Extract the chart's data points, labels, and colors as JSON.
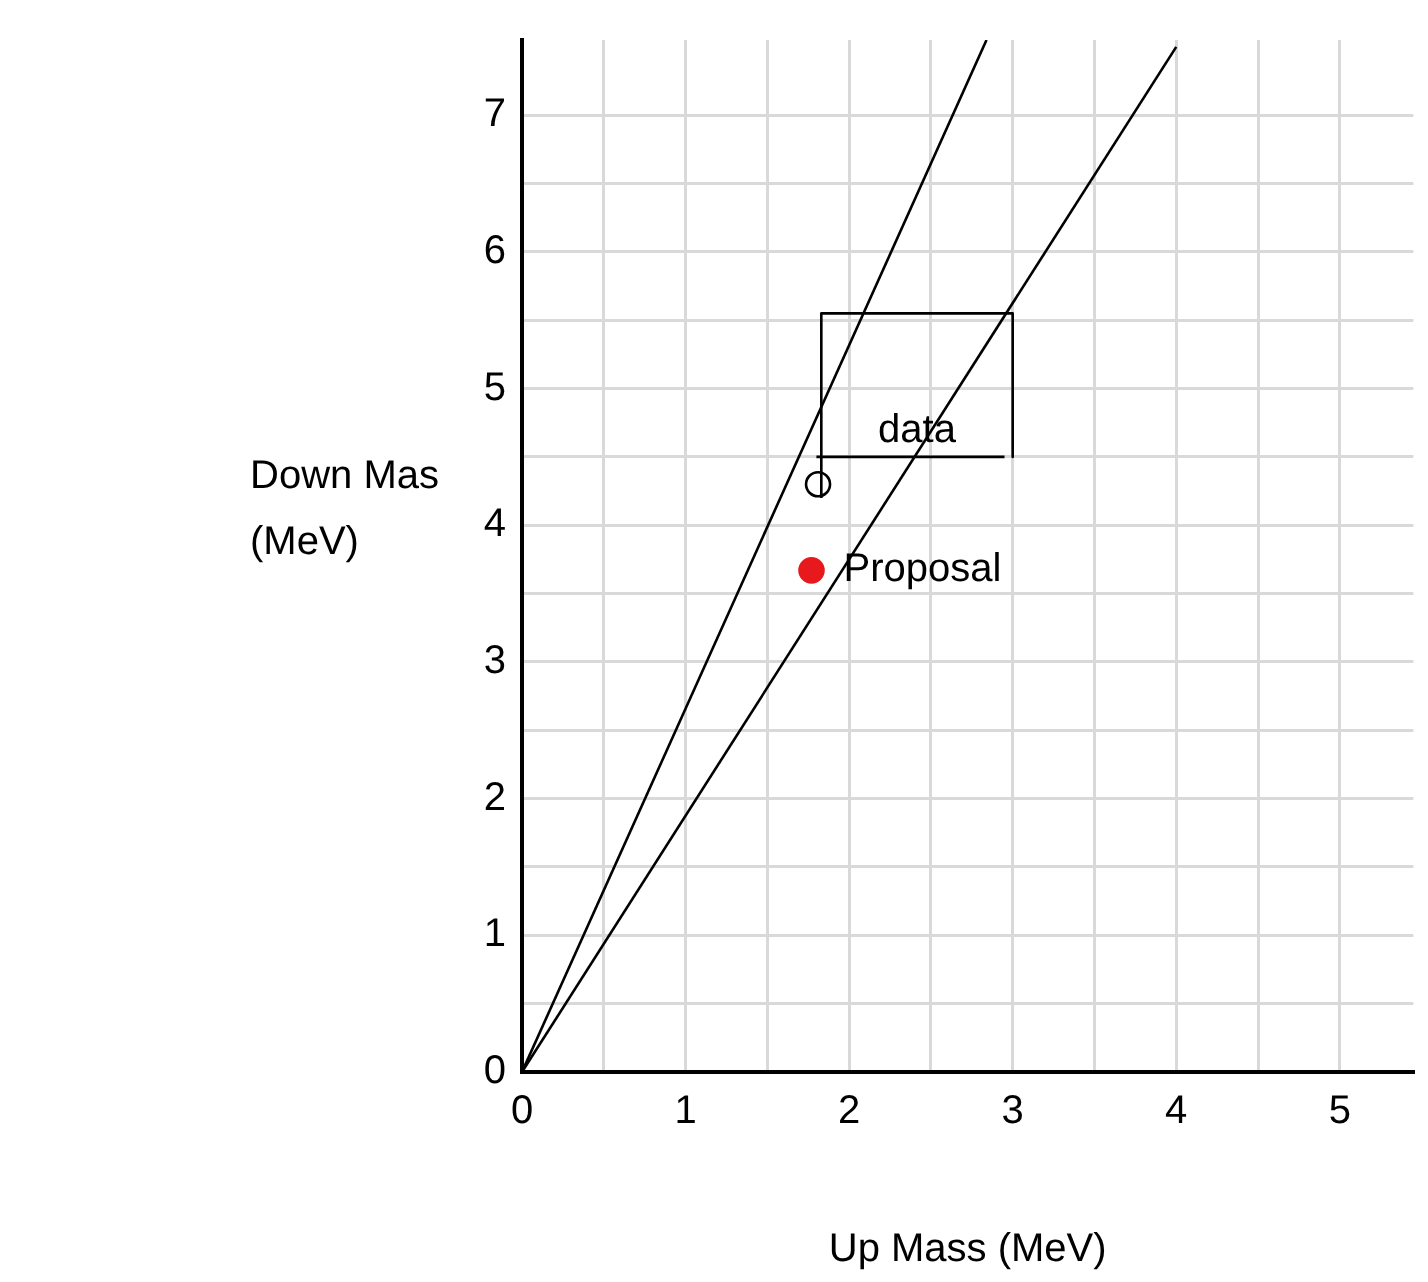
{
  "chart_data": {
    "type": "scatter",
    "xlabel": "Up Mass (MeV)",
    "ylabel": "Down Mas\n(MeV)",
    "xlim": [
      0,
      5.45
    ],
    "ylim": [
      0,
      7.55
    ],
    "xticks": [
      0,
      {
        "value": 0.5,
        "label": null
      },
      1,
      {
        "value": 1.5,
        "label": null
      },
      2,
      {
        "value": 2.5,
        "label": null
      },
      3,
      {
        "value": 3.5,
        "label": null
      },
      4,
      {
        "value": 4.5,
        "label": null
      },
      5
    ],
    "yticks": [
      0,
      {
        "value": 0.5,
        "label": null
      },
      1,
      {
        "value": 1.5,
        "label": null
      },
      2,
      {
        "value": 2.5,
        "label": null
      },
      3,
      {
        "value": 3.5,
        "label": null
      },
      4,
      {
        "value": 4.5,
        "label": null
      },
      5,
      {
        "value": 5.5,
        "label": null
      },
      6,
      {
        "value": 6.5,
        "label": null
      },
      7
    ],
    "grid": true,
    "legend": false,
    "series": [
      {
        "type": "line",
        "color": "#000000",
        "marker": "none",
        "x": [
          0,
          2.84
        ],
        "values": [
          0,
          7.55
        ]
      },
      {
        "type": "line",
        "color": "#000000",
        "marker": "none",
        "x": [
          0,
          4.0
        ],
        "values": [
          0,
          7.5
        ]
      },
      {
        "type": "line",
        "name": "data",
        "color": "#000000",
        "marker": "none",
        "x": [
          1.83,
          1.83,
          3.0,
          3.0
        ],
        "values": [
          4.2,
          5.55,
          5.55,
          4.5
        ]
      },
      {
        "type": "line",
        "color": "#000000",
        "marker": "none",
        "x": [
          1.8,
          2.95
        ],
        "values": [
          4.5,
          4.5
        ]
      },
      {
        "type": "scatter",
        "color": "#000000",
        "marker": "circle",
        "x": [
          1.81
        ],
        "values": [
          4.3
        ]
      },
      {
        "type": "scatter",
        "name": "Proposal",
        "color": "#e8191c",
        "marker": "circle",
        "x": [
          1.77
        ],
        "values": [
          3.67
        ]
      }
    ]
  }
}
